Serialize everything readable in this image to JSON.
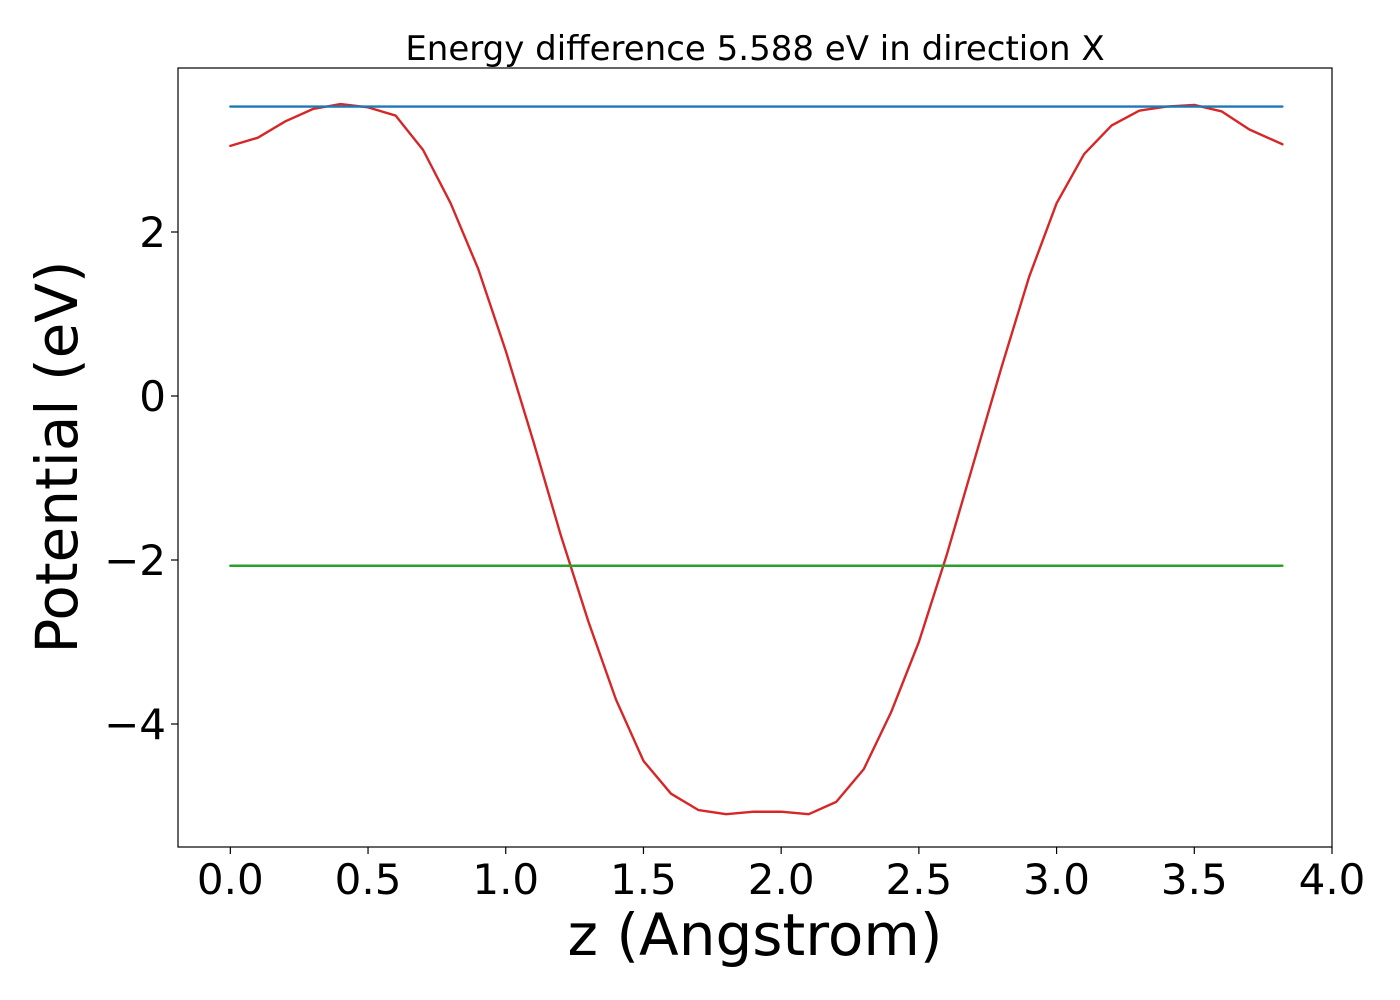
{
  "chart_data": {
    "type": "line",
    "title": "Energy difference 5.588 eV in direction X",
    "xlabel": "z (Angstrom)",
    "ylabel": "Potential (eV)",
    "xlim": [
      -0.19,
      4.0
    ],
    "ylim": [
      -5.5,
      4.0
    ],
    "x_ticks": [
      0.0,
      0.5,
      1.0,
      1.5,
      2.0,
      2.5,
      3.0,
      3.5,
      4.0
    ],
    "x_tick_labels": [
      "0.0",
      "0.5",
      "1.0",
      "1.5",
      "2.0",
      "2.5",
      "3.0",
      "3.5",
      "4.0"
    ],
    "y_ticks": [
      -4,
      -2,
      0,
      2
    ],
    "y_tick_labels": [
      "−4",
      "−2",
      "0",
      "2"
    ],
    "grid": false,
    "legend": "none",
    "series": [
      {
        "color": "#d62728",
        "x": [
          0.0,
          0.1,
          0.2,
          0.3,
          0.4,
          0.5,
          0.6,
          0.7,
          0.8,
          0.9,
          1.0,
          1.1,
          1.2,
          1.3,
          1.4,
          1.5,
          1.6,
          1.7,
          1.8,
          1.9,
          2.0,
          2.1,
          2.2,
          2.3,
          2.4,
          2.5,
          2.6,
          2.7,
          2.8,
          2.9,
          3.0,
          3.1,
          3.2,
          3.3,
          3.4,
          3.5,
          3.6,
          3.7,
          3.82
        ],
        "y": [
          3.05,
          3.15,
          3.35,
          3.5,
          3.56,
          3.52,
          3.42,
          3.0,
          2.35,
          1.55,
          0.55,
          -0.55,
          -1.7,
          -2.75,
          -3.7,
          -4.45,
          -4.85,
          -5.05,
          -5.1,
          -5.07,
          -5.07,
          -5.1,
          -4.95,
          -4.55,
          -3.85,
          -3.0,
          -1.95,
          -0.8,
          0.35,
          1.45,
          2.35,
          2.95,
          3.3,
          3.48,
          3.53,
          3.55,
          3.47,
          3.25,
          3.07
        ]
      },
      {
        "color": "#1f77b4",
        "x": [
          0.0,
          3.82
        ],
        "y": [
          3.53,
          3.53
        ]
      },
      {
        "color": "#2ca02c",
        "x": [
          0.0,
          3.82
        ],
        "y": [
          -2.07,
          -2.07
        ]
      }
    ]
  }
}
